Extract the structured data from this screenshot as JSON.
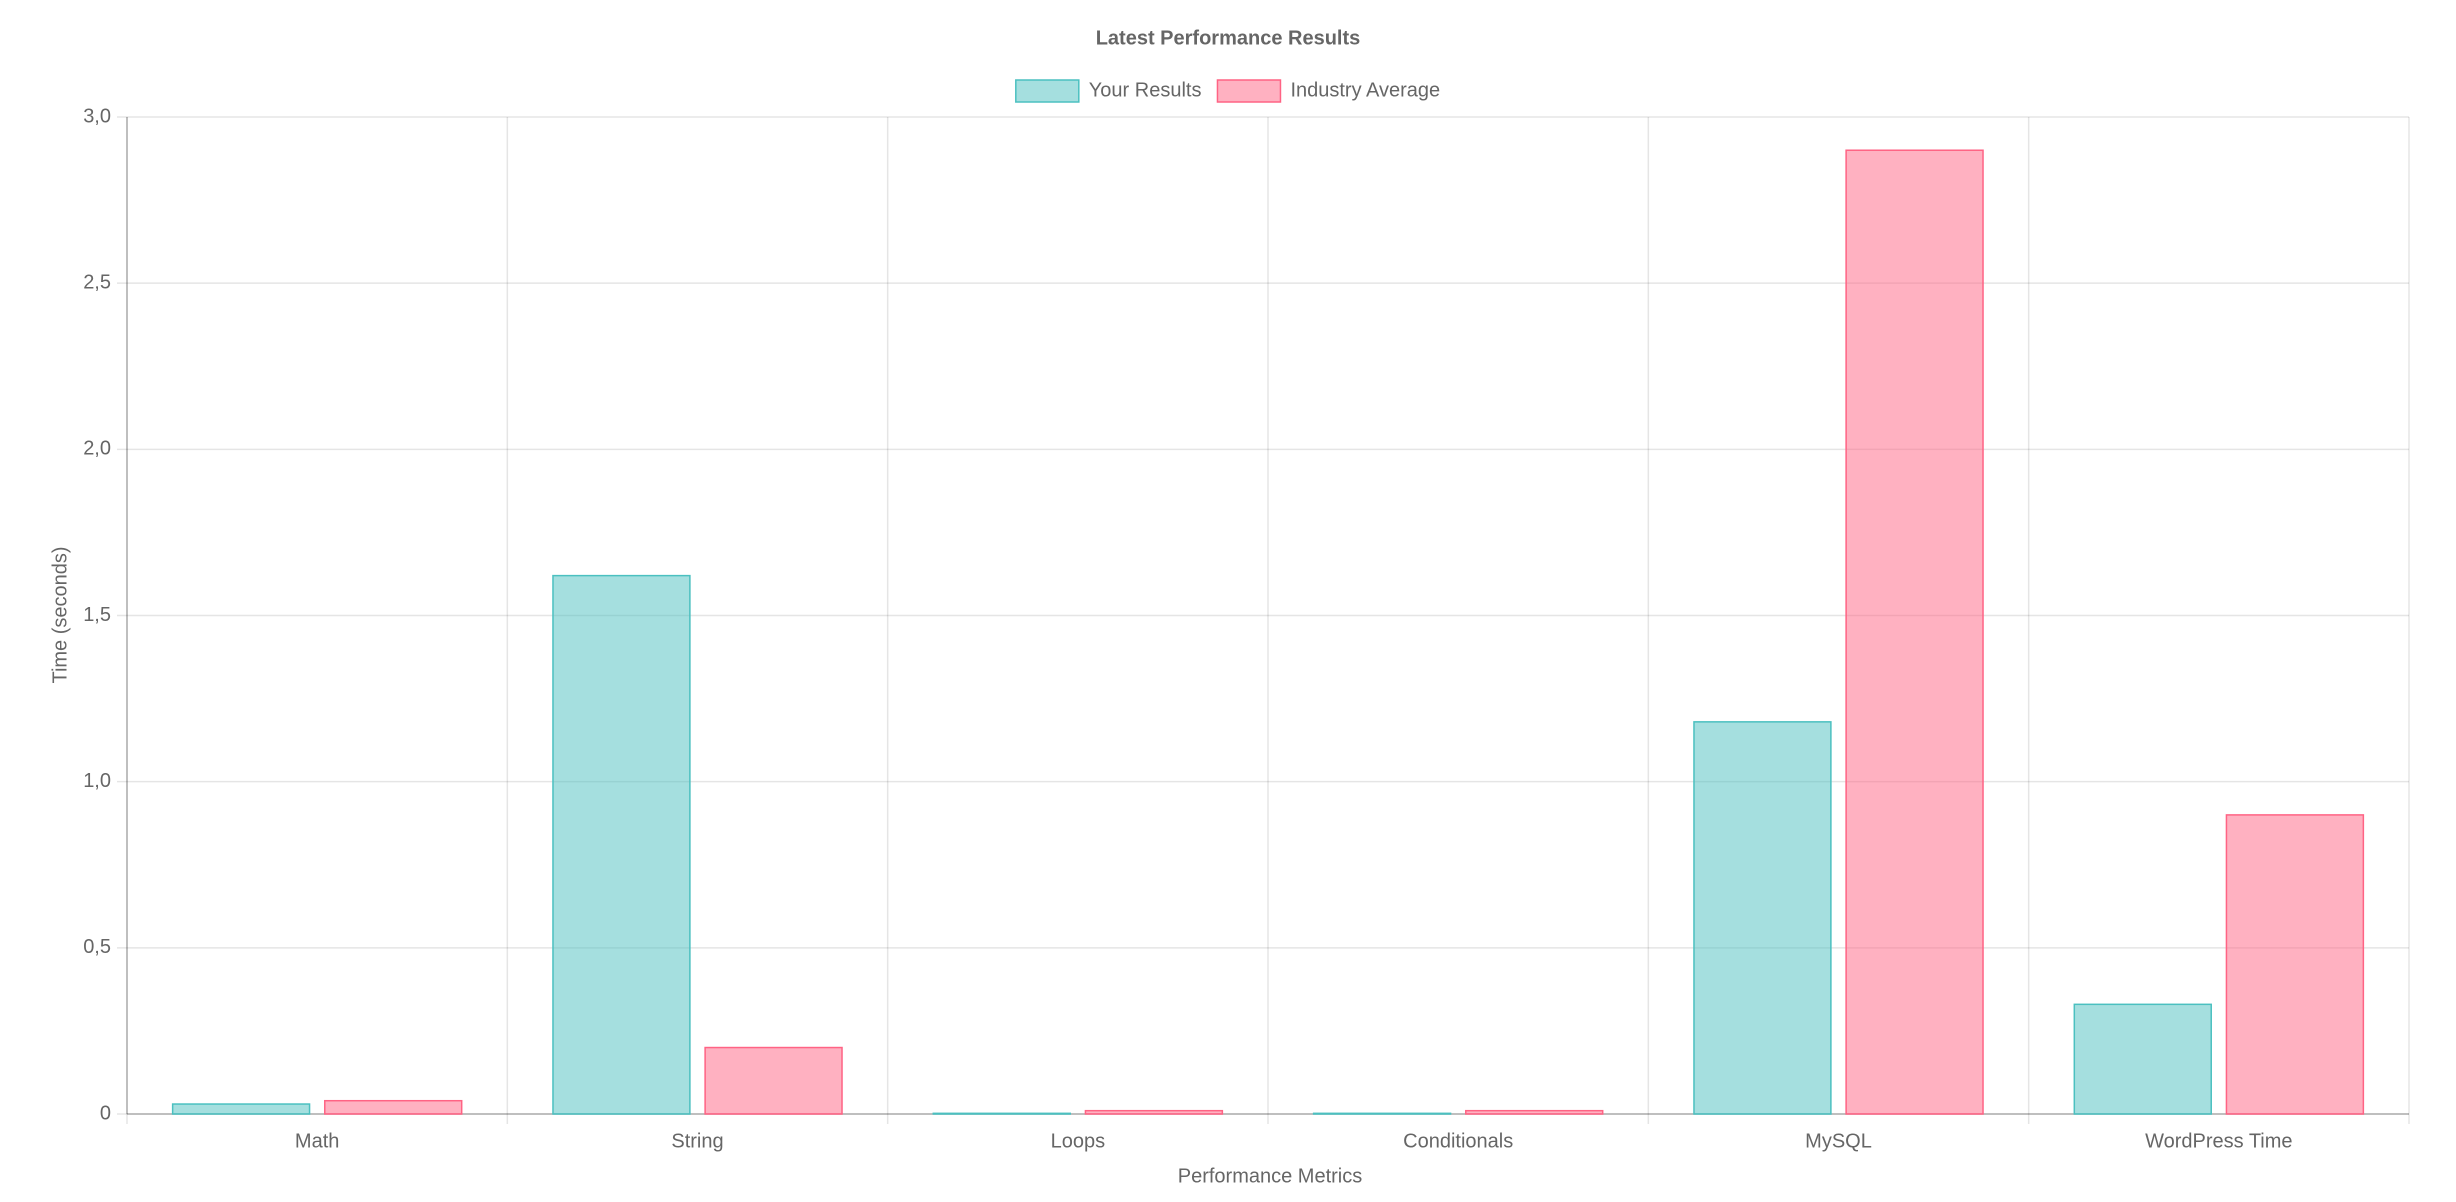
{
  "chart_data": {
    "type": "bar",
    "title": "Latest Performance Results",
    "x_label": "Performance Metrics",
    "y_label": "Time (seconds)",
    "categories": [
      "Math",
      "String",
      "Loops",
      "Conditionals",
      "MySQL",
      "WordPress Time"
    ],
    "series": [
      {
        "name": "Your Results",
        "color": "rgb(75, 192, 192)",
        "values": [
          0.03,
          1.62,
          0.002,
          0.002,
          1.18,
          0.33
        ]
      },
      {
        "name": "Industry Average",
        "color": "rgb(255, 99, 132)",
        "values": [
          0.04,
          0.2,
          0.01,
          0.01,
          2.9,
          0.9
        ]
      }
    ],
    "ylim": [
      0,
      3
    ],
    "yticks": [
      0,
      {
        "value": 0.5,
        "label": "0,5"
      },
      {
        "value": 1,
        "label": "1,0"
      },
      {
        "value": 1.5,
        "label": "1,5"
      },
      {
        "value": 2,
        "label": "2,0"
      },
      {
        "value": 2.5,
        "label": "2,5"
      },
      {
        "value": 3,
        "label": "3,0"
      }
    ],
    "grid": true,
    "legend": "top"
  }
}
